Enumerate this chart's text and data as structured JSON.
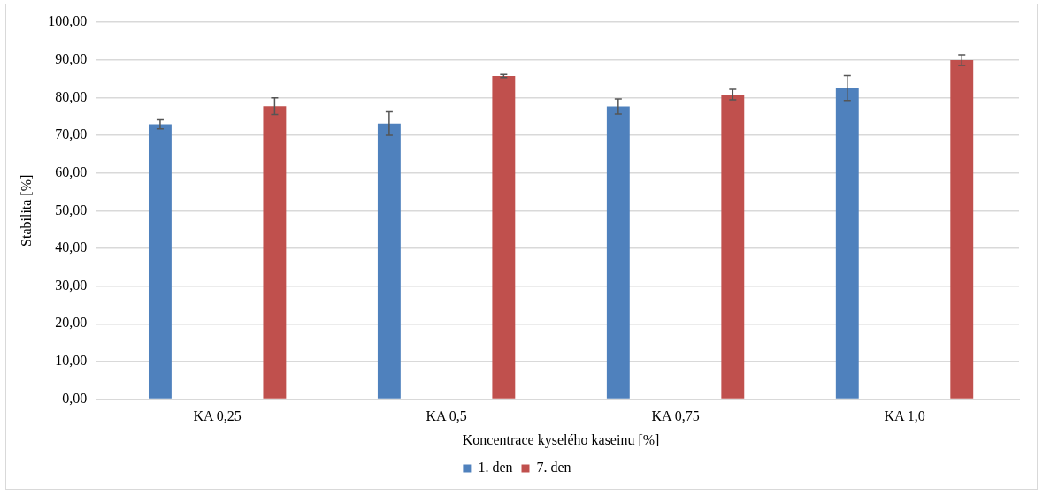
{
  "chart_data": {
    "type": "bar",
    "xlabel": "Koncentrace kyselého kaseinu [%]",
    "ylabel": "Stabilita [%]",
    "categories": [
      "KA 0,25",
      "KA 0,5",
      "KA 0,75",
      "KA 1,0"
    ],
    "series": [
      {
        "name": "1. den",
        "color": "#4f81bd",
        "values": [
          72.9,
          73.1,
          77.6,
          82.5
        ],
        "errors": [
          1.2,
          3.1,
          2.0,
          3.3
        ]
      },
      {
        "name": "7. den",
        "color": "#c0504d",
        "values": [
          77.7,
          85.7,
          80.8,
          89.9
        ],
        "errors": [
          2.2,
          0.4,
          1.4,
          1.4
        ]
      }
    ],
    "ylim": [
      0,
      100
    ],
    "yticks": [
      {
        "value": 0,
        "label": "0,00"
      },
      {
        "value": 10,
        "label": "10,00"
      },
      {
        "value": 20,
        "label": "20,00"
      },
      {
        "value": 30,
        "label": "30,00"
      },
      {
        "value": 40,
        "label": "40,00"
      },
      {
        "value": 50,
        "label": "50,00"
      },
      {
        "value": 60,
        "label": "60,00"
      },
      {
        "value": 70,
        "label": "70,00"
      },
      {
        "value": 80,
        "label": "80,00"
      },
      {
        "value": 90,
        "label": "90,00"
      },
      {
        "value": 100,
        "label": "100,00"
      }
    ],
    "grid": "y",
    "legend": "bottom"
  }
}
